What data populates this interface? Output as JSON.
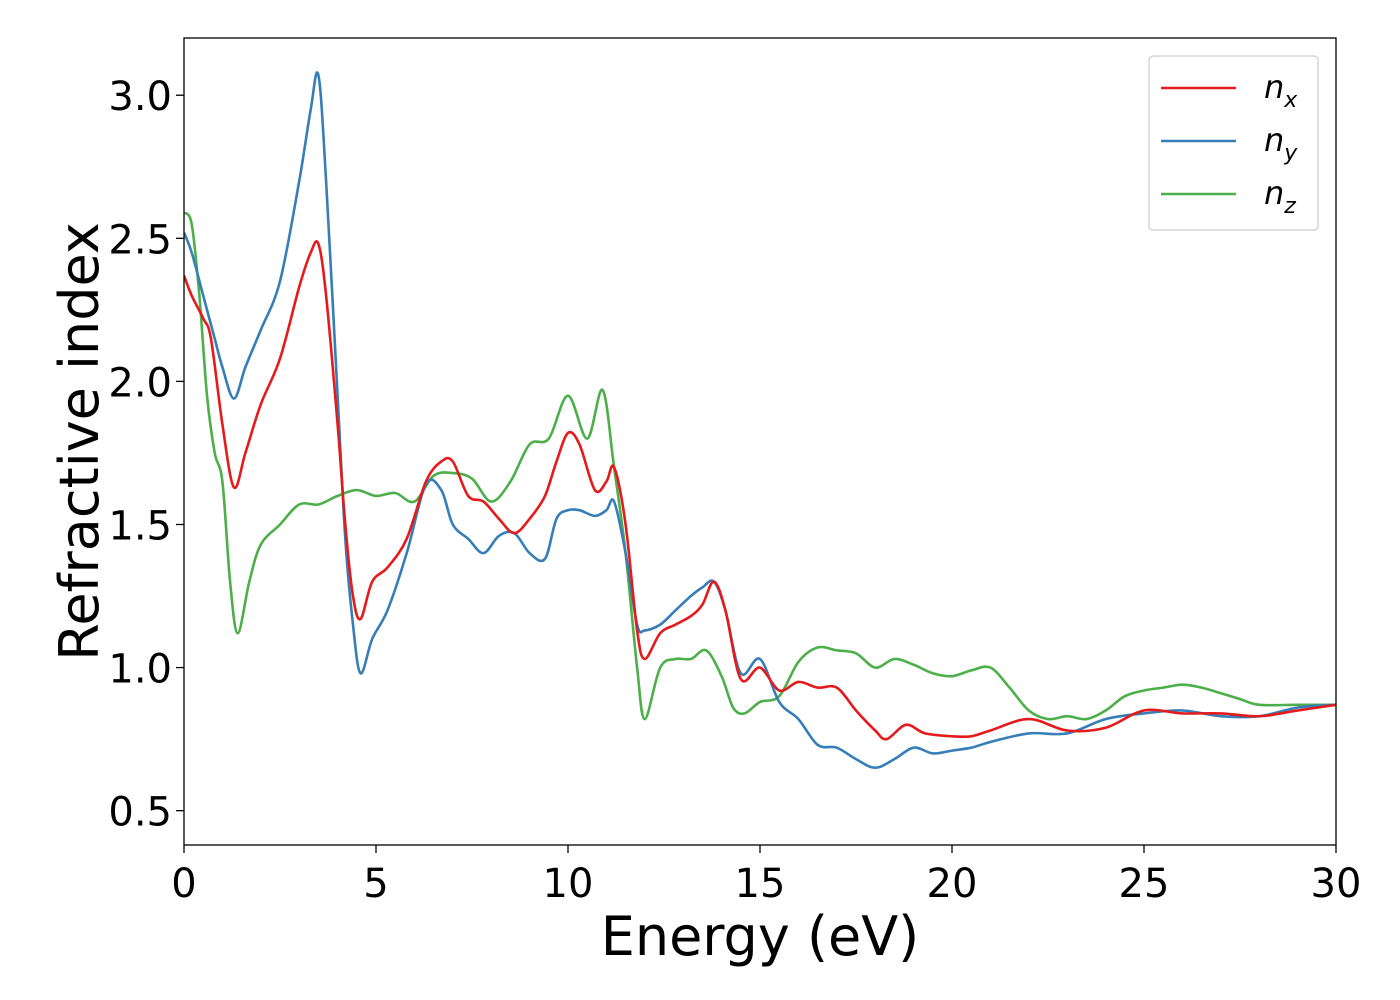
{
  "chart_data": {
    "type": "line",
    "xlabel": "Energy (eV)",
    "ylabel": "Refractive index",
    "xlim": [
      0,
      30
    ],
    "ylim": [
      0.38,
      3.2
    ],
    "xticks": [
      0,
      5,
      10,
      15,
      20,
      25,
      30
    ],
    "xtick_labels": [
      "0",
      "5",
      "10",
      "15",
      "20",
      "25",
      "30"
    ],
    "yticks": [
      0.5,
      1.0,
      1.5,
      2.0,
      2.5,
      3.0
    ],
    "ytick_labels": [
      "0.5",
      "1.0",
      "1.5",
      "2.0",
      "2.5",
      "3.0"
    ],
    "grid": false,
    "legend_position": "top-right",
    "series": [
      {
        "name": "n_x",
        "label_main": "n",
        "label_sub": "x",
        "color": "#e41a1c",
        "x": [
          0,
          0.2,
          0.5,
          0.7,
          1.0,
          1.3,
          1.6,
          2.0,
          2.5,
          3.0,
          3.3,
          3.5,
          3.7,
          4.0,
          4.2,
          4.4,
          4.6,
          4.9,
          5.3,
          5.8,
          6.3,
          6.7,
          7.0,
          7.4,
          7.8,
          8.2,
          8.6,
          9.0,
          9.4,
          9.7,
          10.0,
          10.3,
          10.7,
          11.0,
          11.2,
          11.5,
          11.8,
          12.0,
          12.4,
          12.8,
          13.2,
          13.5,
          13.8,
          14.1,
          14.5,
          15.0,
          15.5,
          16.0,
          16.5,
          17.0,
          17.5,
          18.0,
          18.3,
          18.8,
          19.3,
          20.0,
          20.5,
          21.0,
          22.0,
          23.0,
          24.0,
          25.0,
          26.0,
          27.0,
          28.0,
          29.0,
          30.0
        ],
        "y": [
          2.37,
          2.3,
          2.22,
          2.15,
          1.85,
          1.63,
          1.75,
          1.92,
          2.08,
          2.33,
          2.45,
          2.48,
          2.3,
          1.85,
          1.5,
          1.25,
          1.17,
          1.3,
          1.35,
          1.45,
          1.65,
          1.72,
          1.72,
          1.6,
          1.58,
          1.52,
          1.47,
          1.52,
          1.6,
          1.72,
          1.82,
          1.78,
          1.62,
          1.65,
          1.7,
          1.5,
          1.13,
          1.03,
          1.12,
          1.15,
          1.18,
          1.22,
          1.3,
          1.2,
          0.96,
          1.0,
          0.92,
          0.95,
          0.93,
          0.93,
          0.85,
          0.78,
          0.75,
          0.8,
          0.77,
          0.76,
          0.76,
          0.78,
          0.82,
          0.78,
          0.79,
          0.85,
          0.84,
          0.84,
          0.83,
          0.85,
          0.87
        ]
      },
      {
        "name": "n_y",
        "label_main": "n",
        "label_sub": "y",
        "color": "#377eb8",
        "x": [
          0,
          0.2,
          0.5,
          0.8,
          1.0,
          1.3,
          1.6,
          2.0,
          2.5,
          3.0,
          3.3,
          3.5,
          3.7,
          4.0,
          4.2,
          4.4,
          4.6,
          4.9,
          5.3,
          5.8,
          6.3,
          6.7,
          7.0,
          7.4,
          7.8,
          8.2,
          8.6,
          9.0,
          9.4,
          9.7,
          10.0,
          10.3,
          10.7,
          11.0,
          11.2,
          11.5,
          11.8,
          12.0,
          12.4,
          12.8,
          13.2,
          13.5,
          13.8,
          14.1,
          14.5,
          15.0,
          15.5,
          16.0,
          16.5,
          17.0,
          17.5,
          18.0,
          18.5,
          19.0,
          19.5,
          20.0,
          20.5,
          21.0,
          22.0,
          23.0,
          24.0,
          25.0,
          26.0,
          27.0,
          28.0,
          29.0,
          30.0
        ],
        "y": [
          2.52,
          2.45,
          2.3,
          2.15,
          2.05,
          1.94,
          2.05,
          2.18,
          2.35,
          2.7,
          2.95,
          3.07,
          2.7,
          1.95,
          1.45,
          1.15,
          0.98,
          1.1,
          1.2,
          1.4,
          1.64,
          1.62,
          1.5,
          1.45,
          1.4,
          1.46,
          1.47,
          1.4,
          1.38,
          1.52,
          1.55,
          1.55,
          1.53,
          1.55,
          1.58,
          1.4,
          1.15,
          1.13,
          1.15,
          1.2,
          1.25,
          1.28,
          1.3,
          1.2,
          0.98,
          1.03,
          0.88,
          0.82,
          0.73,
          0.72,
          0.68,
          0.65,
          0.68,
          0.72,
          0.7,
          0.71,
          0.72,
          0.74,
          0.77,
          0.77,
          0.82,
          0.84,
          0.85,
          0.83,
          0.83,
          0.86,
          0.87
        ]
      },
      {
        "name": "n_z",
        "label_main": "n",
        "label_sub": "z",
        "color": "#4daf4a",
        "x": [
          0,
          0.2,
          0.4,
          0.6,
          0.8,
          1.0,
          1.2,
          1.4,
          1.7,
          2.0,
          2.5,
          3.0,
          3.5,
          4.0,
          4.5,
          5.0,
          5.5,
          6.0,
          6.5,
          7.0,
          7.5,
          8.0,
          8.5,
          9.0,
          9.5,
          10.0,
          10.5,
          10.9,
          11.2,
          11.5,
          11.8,
          12.0,
          12.4,
          12.8,
          13.2,
          13.6,
          14.0,
          14.3,
          14.6,
          15.0,
          15.5,
          16.0,
          16.5,
          17.0,
          17.5,
          18.0,
          18.5,
          19.0,
          19.5,
          20.0,
          20.5,
          21.0,
          21.5,
          22.0,
          22.5,
          23.0,
          23.5,
          24.0,
          24.5,
          25.0,
          25.5,
          26.0,
          26.5,
          27.0,
          27.5,
          28.0,
          29.0,
          30.0
        ],
        "y": [
          2.59,
          2.55,
          2.3,
          1.95,
          1.75,
          1.65,
          1.3,
          1.12,
          1.3,
          1.43,
          1.5,
          1.57,
          1.57,
          1.6,
          1.62,
          1.6,
          1.61,
          1.58,
          1.67,
          1.68,
          1.66,
          1.58,
          1.65,
          1.78,
          1.8,
          1.95,
          1.8,
          1.97,
          1.7,
          1.4,
          1.0,
          0.82,
          1.0,
          1.03,
          1.03,
          1.06,
          0.97,
          0.86,
          0.84,
          0.88,
          0.9,
          1.02,
          1.07,
          1.06,
          1.05,
          1.0,
          1.03,
          1.01,
          0.98,
          0.97,
          0.99,
          1.0,
          0.93,
          0.85,
          0.82,
          0.83,
          0.82,
          0.85,
          0.9,
          0.92,
          0.93,
          0.94,
          0.93,
          0.91,
          0.89,
          0.87,
          0.87,
          0.87
        ]
      }
    ]
  }
}
